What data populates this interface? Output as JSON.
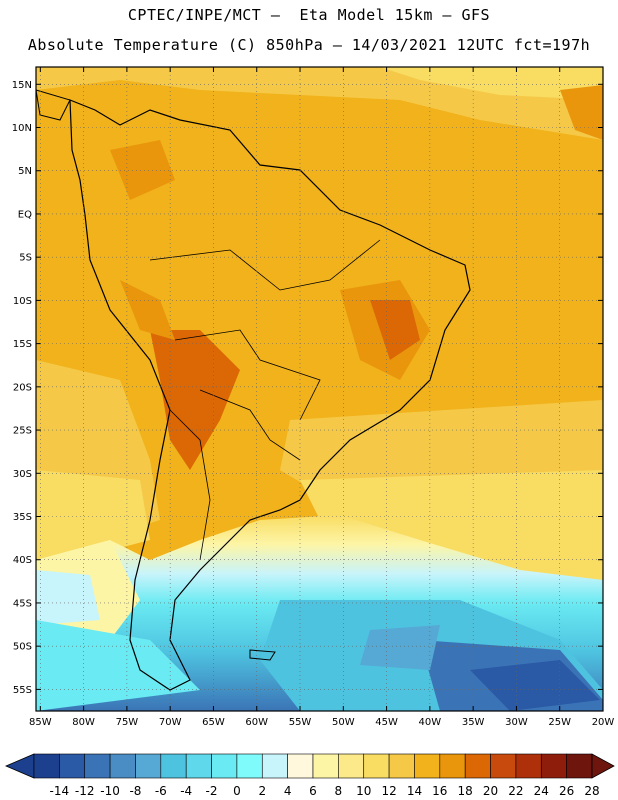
{
  "header": {
    "line1": "CPTEC/INPE/MCT –  Eta Model 15km – GFS",
    "line2": "Absolute Temperature (C) 850hPa – 14/03/2021 12UTC fct=197h"
  },
  "map": {
    "lat_labels": [
      "15N",
      "10N",
      "5N",
      "EQ",
      "5S",
      "10S",
      "15S",
      "20S",
      "25S",
      "30S",
      "35S",
      "40S",
      "45S",
      "50S",
      "55S"
    ],
    "lon_labels": [
      "85W",
      "80W",
      "75W",
      "70W",
      "65W",
      "60W",
      "55W",
      "50W",
      "45W",
      "40W",
      "35W",
      "30W",
      "25W",
      "20W"
    ]
  },
  "colorbar": {
    "labels": [
      "-14",
      "-12",
      "-10",
      "-8",
      "-6",
      "-4",
      "-2",
      "0",
      "2",
      "4",
      "6",
      "8",
      "10",
      "12",
      "14",
      "16",
      "18",
      "20",
      "22",
      "24",
      "26",
      "28"
    ],
    "colors": [
      "#1c3f8e",
      "#2a59a6",
      "#3b74b6",
      "#4a8dc4",
      "#55a9d4",
      "#4ec3e0",
      "#5fd8ec",
      "#6aeaf2",
      "#80fbfc",
      "#c8f4fb",
      "#fff8dc",
      "#fdf5a6",
      "#fbe98a",
      "#f9dc62",
      "#f5c947",
      "#f1b21b",
      "#e9960c",
      "#dc6705",
      "#c84a0c",
      "#ad300b",
      "#8f1d0c",
      "#6e150e"
    ],
    "low_color": "#1c3f8e",
    "high_color": "#6e150e"
  }
}
